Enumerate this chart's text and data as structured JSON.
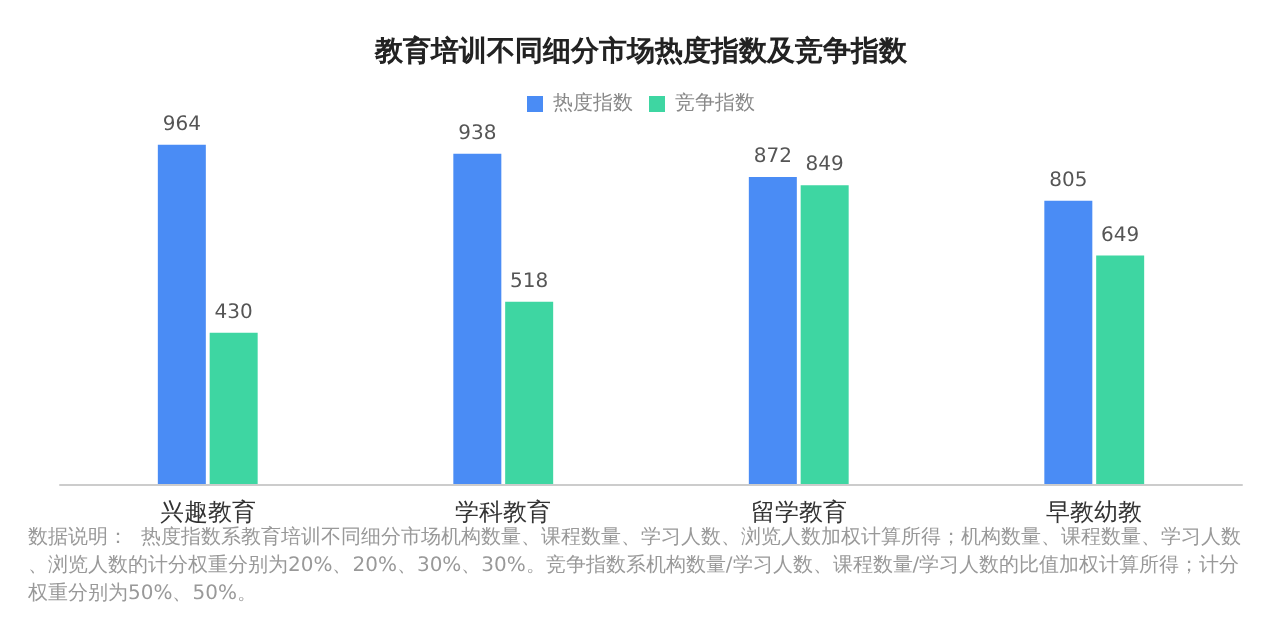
{
  "chart_data": {
    "type": "bar",
    "title": "教育培训不同细分市场热度指数及竞争指数",
    "categories": [
      "兴趣教育",
      "学科教育",
      "留学教育",
      "早教幼教"
    ],
    "series": [
      {
        "name": "热度指数",
        "color": "#4a8cf5",
        "values": [
          964,
          938,
          872,
          805
        ]
      },
      {
        "name": "竞争指数",
        "color": "#3ed6a2",
        "values": [
          430,
          518,
          849,
          649
        ]
      }
    ],
    "data_labels": true,
    "legend": "top",
    "grid": false,
    "annotations": [
      "数据说明：  热度指数系教育培训不同细分市场机构数量、课程数量、学习人数、浏览人数加权计算所得；机构数量、课程数量、学习人数、浏览人数的计分权重分别为20%、20%、30%、30%。竞争指数系机构数量/学习人数、课程数量/学习人数的比值加权计算所得；计分权重分别为50%、50%。"
    ]
  }
}
